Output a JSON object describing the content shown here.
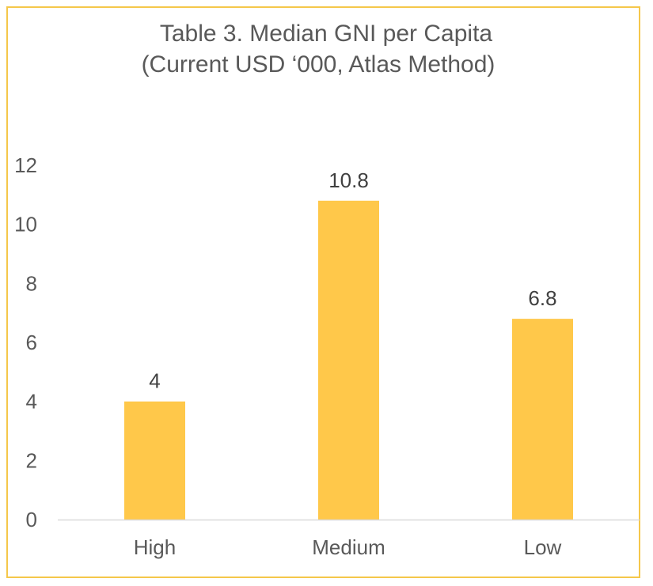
{
  "chart_data": {
    "type": "bar",
    "title": "Table 3. Median GNI per Capita",
    "subtitle": "(Current USD ‘000, Atlas Method)",
    "categories": [
      "High",
      "Medium",
      "Low"
    ],
    "values": [
      4,
      10.8,
      6.8
    ],
    "data_labels": [
      "4",
      "10.8",
      "6.8"
    ],
    "xlabel": "",
    "ylabel": "",
    "ylim": [
      0,
      12
    ],
    "yticks": [
      0,
      2,
      4,
      6,
      8,
      10,
      12
    ],
    "ytick_labels": [
      "0",
      "2",
      "4",
      "6",
      "8",
      "10",
      "12"
    ],
    "grid": false,
    "legend": "none",
    "colors": {
      "bar": "#ffc84a",
      "frame": "#f5c74a",
      "axis": "#d9d9d9",
      "text": "#595959"
    }
  }
}
